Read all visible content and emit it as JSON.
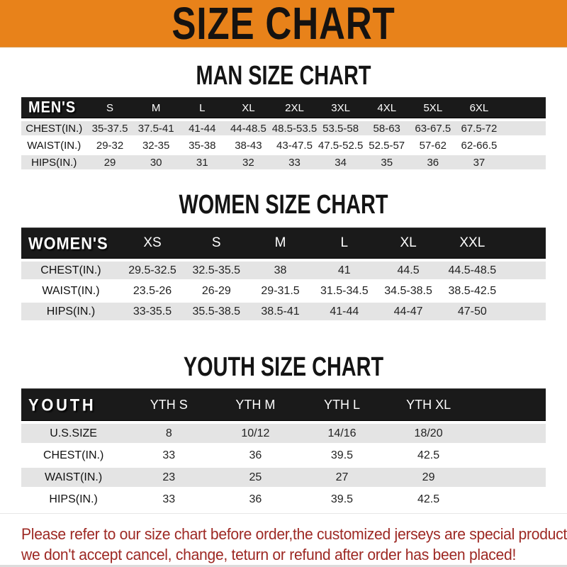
{
  "banner": {
    "title": "SIZE CHART"
  },
  "colors": {
    "banner_bg": "#E8821A",
    "header_bar": "#1A1A1A",
    "row_stripe": "#E4E4E4",
    "note_text": "#9D2823"
  },
  "sections": [
    {
      "heading": "MAN SIZE CHART",
      "table": {
        "name": "mens",
        "corner_label": "MEN'S",
        "columns": [
          "S",
          "M",
          "L",
          "XL",
          "2XL",
          "3XL",
          "4XL",
          "5XL",
          "6XL"
        ],
        "rows": [
          {
            "label": "CHEST(IN.)",
            "values": [
              "35-37.5",
              "37.5-41",
              "41-44",
              "44-48.5",
              "48.5-53.5",
              "53.5-58",
              "58-63",
              "63-67.5",
              "67.5-72"
            ]
          },
          {
            "label": "WAIST(IN.)",
            "values": [
              "29-32",
              "32-35",
              "35-38",
              "38-43",
              "43-47.5",
              "47.5-52.5",
              "52.5-57",
              "57-62",
              "62-66.5"
            ]
          },
          {
            "label": "HIPS(IN.)",
            "values": [
              "29",
              "30",
              "31",
              "32",
              "33",
              "34",
              "35",
              "36",
              "37"
            ]
          }
        ]
      }
    },
    {
      "heading": "WOMEN SIZE CHART",
      "table": {
        "name": "womens",
        "corner_label": "WOMEN'S",
        "columns": [
          "XS",
          "S",
          "M",
          "L",
          "XL",
          "XXL"
        ],
        "rows": [
          {
            "label": "CHEST(IN.)",
            "values": [
              "29.5-32.5",
              "32.5-35.5",
              "38",
              "41",
              "44.5",
              "44.5-48.5"
            ]
          },
          {
            "label": "WAIST(IN.)",
            "values": [
              "23.5-26",
              "26-29",
              "29-31.5",
              "31.5-34.5",
              "34.5-38.5",
              "38.5-42.5"
            ]
          },
          {
            "label": "HIPS(IN.)",
            "values": [
              "33-35.5",
              "35.5-38.5",
              "38.5-41",
              "41-44",
              "44-47",
              "47-50"
            ]
          }
        ]
      }
    },
    {
      "heading": "YOUTH SIZE CHART",
      "table": {
        "name": "youth",
        "corner_label": "YOUTH",
        "columns": [
          "YTH S",
          "YTH M",
          "YTH L",
          "YTH XL"
        ],
        "rows": [
          {
            "label": "U.S.SIZE",
            "values": [
              "8",
              "10/12",
              "14/16",
              "18/20"
            ]
          },
          {
            "label": "CHEST(IN.)",
            "values": [
              "33",
              "36",
              "39.5",
              "42.5"
            ]
          },
          {
            "label": "WAIST(IN.)",
            "values": [
              "23",
              "25",
              "27",
              "29"
            ]
          },
          {
            "label": "HIPS(IN.)",
            "values": [
              "33",
              "36",
              "39.5",
              "42.5"
            ]
          }
        ]
      }
    }
  ],
  "note": {
    "lines": [
      "Please refer to our size chart before order,the customized jerseys are special products,",
      "we don't accept cancel, change, teturn or refund after order has been placed!"
    ]
  }
}
